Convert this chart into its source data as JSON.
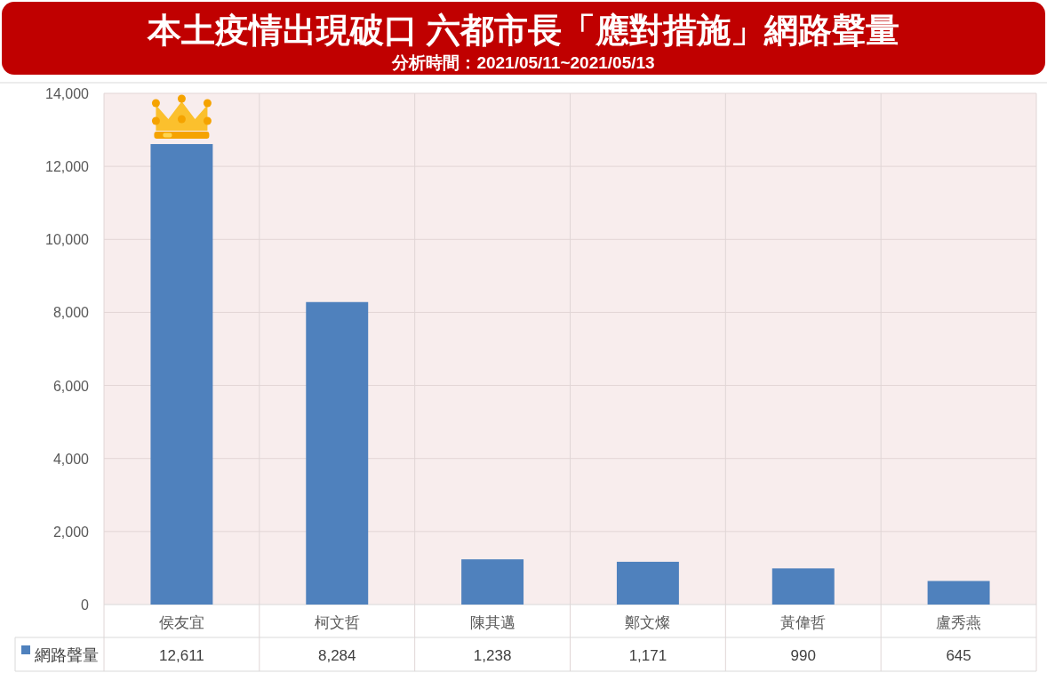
{
  "chart_data": {
    "type": "bar",
    "title": "本土疫情出現破口 六都市長「應對措施」網路聲量",
    "subtitle": "分析時間：2021/05/11~2021/05/13",
    "categories": [
      "侯友宜",
      "柯文哲",
      "陳其邁",
      "鄭文燦",
      "黃偉哲",
      "盧秀燕"
    ],
    "series": [
      {
        "name": "網路聲量",
        "color": "#4f81bd",
        "values": [
          12611,
          8284,
          1238,
          1171,
          990,
          645
        ],
        "value_labels": [
          "12,611",
          "8,284",
          "1,238",
          "1,171",
          "990",
          "645"
        ]
      }
    ],
    "ylim": [
      0,
      14000
    ],
    "yticks": [
      0,
      {
        "value": 2000,
        "label": "2,000"
      },
      {
        "value": 4000,
        "label": "4,000"
      },
      {
        "value": 6000,
        "label": "6,000"
      },
      {
        "value": 8000,
        "label": "8,000"
      },
      {
        "value": 10000,
        "label": "10,000"
      },
      {
        "value": 12000,
        "label": "12,000"
      },
      {
        "value": 14000,
        "label": "14,000"
      }
    ],
    "grid": true,
    "legend": "bottom"
  }
}
